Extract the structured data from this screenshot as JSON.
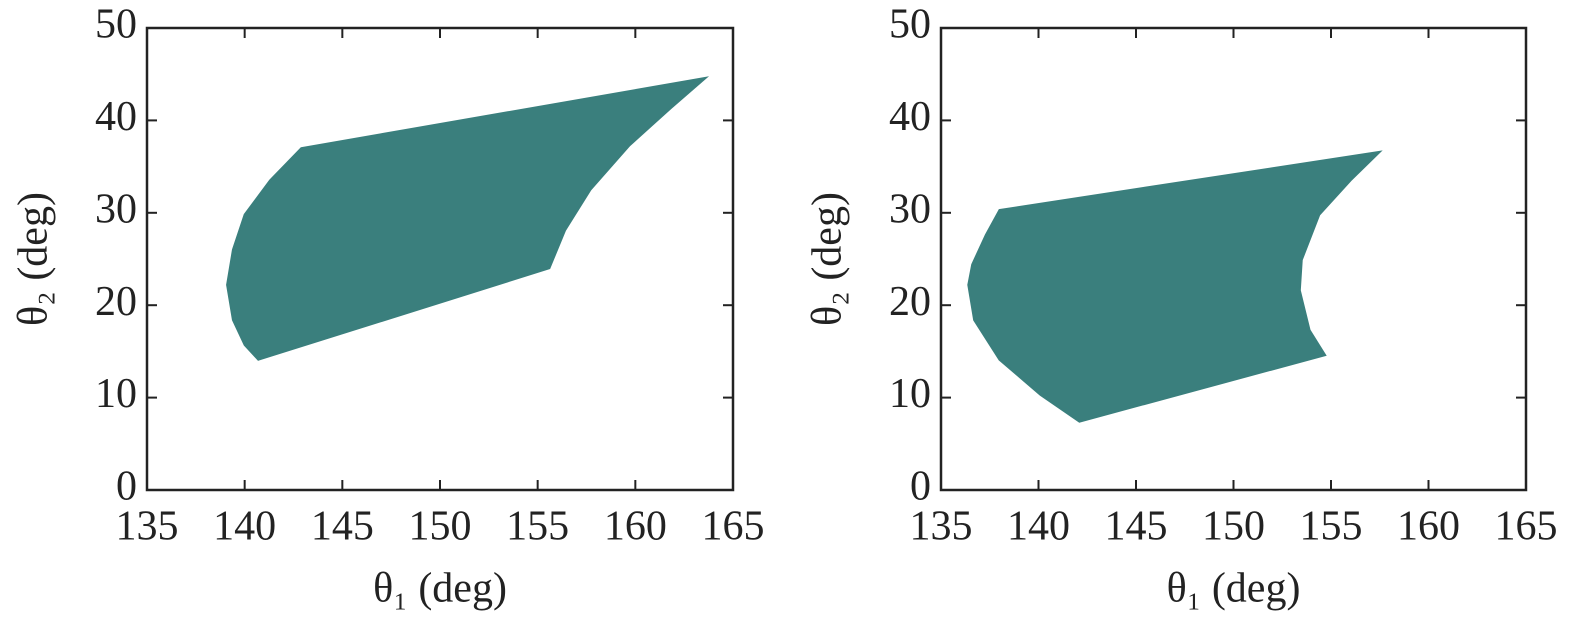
{
  "chart_data": [
    {
      "type": "region",
      "color": "#3a7f7d",
      "xlabel": "θ₁ (deg)",
      "ylabel": "θ₂ (deg)",
      "x": [
        140.7,
        155.6,
        156.4,
        157.7,
        159.7,
        161.8,
        163.6,
        142.9,
        141.3,
        140.0,
        139.4,
        139.1,
        139.4,
        140.0
      ],
      "y": [
        14.1,
        24.0,
        28.1,
        32.5,
        37.3,
        41.3,
        44.6,
        37.0,
        33.5,
        29.8,
        26.0,
        22.2,
        18.4,
        15.7
      ],
      "xlim": [
        135,
        165
      ],
      "xticks": [
        135,
        140,
        145,
        150,
        155,
        160,
        165
      ],
      "ylim": [
        0,
        50
      ],
      "yticks": [
        0,
        10,
        20,
        30,
        40,
        50
      ]
    },
    {
      "type": "region",
      "color": "#3a7f7d",
      "xlabel": "θ₁ (deg)",
      "ylabel": "θ₂ (deg)",
      "x": [
        142.1,
        154.7,
        153.9,
        153.4,
        153.5,
        154.4,
        156.0,
        157.5,
        138.0,
        137.3,
        136.6,
        136.4,
        136.7,
        138.0,
        140.1
      ],
      "y": [
        7.4,
        14.6,
        17.3,
        21.6,
        24.9,
        29.8,
        33.5,
        36.6,
        30.3,
        27.6,
        24.4,
        22.2,
        18.4,
        14.1,
        10.3
      ],
      "xlim": [
        135,
        165
      ],
      "xticks": [
        135,
        140,
        145,
        150,
        155,
        160,
        165
      ],
      "ylim": [
        0,
        50
      ],
      "yticks": [
        0,
        10,
        20,
        30,
        40,
        50
      ]
    }
  ]
}
